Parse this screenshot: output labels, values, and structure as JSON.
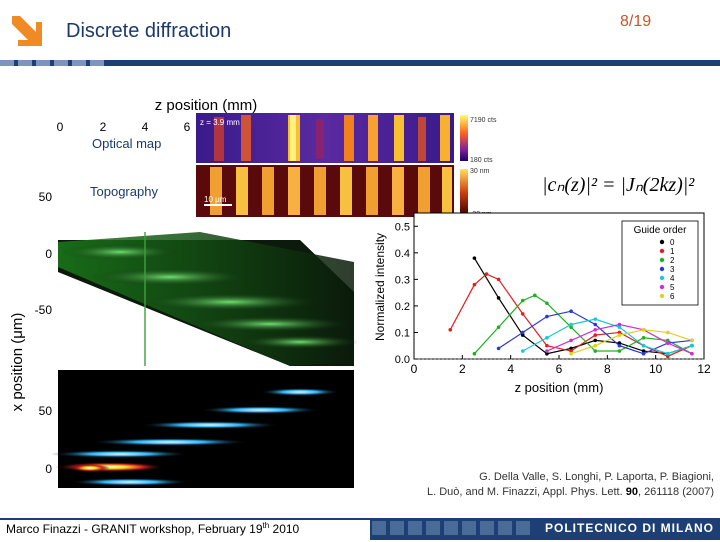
{
  "header": {
    "title": "Discrete diffraction",
    "page_number": "8/19"
  },
  "panels": {
    "optical_map_label": "Optical map",
    "topography_label": "Topography",
    "z_label": "z = 3.9 mm",
    "scale_bar": "10 μm",
    "colorbar_top": "7190 cts",
    "colorbar_mid": "180 cts",
    "colorbar2_top": "30 nm",
    "colorbar2_bottom": "-30 nm"
  },
  "left_plot": {
    "xlabel": "z position (mm)",
    "ylabel": "x position (μm)",
    "x_ticks": [
      "0",
      "2",
      "4",
      "6"
    ],
    "y_ticks_upper": [
      "50",
      "0",
      "-50"
    ],
    "y_ticks_lower": [
      "50",
      "0"
    ]
  },
  "formula": "|cₙ(z)|² = |Jₙ(2kz)|²",
  "chart_data": {
    "type": "line",
    "xlabel": "z position (mm)",
    "ylabel": "Normalized intensity",
    "xlim": [
      0,
      12
    ],
    "ylim": [
      0,
      0.55
    ],
    "x_ticks": [
      0,
      2,
      4,
      6,
      8,
      10,
      12
    ],
    "y_ticks": [
      0.0,
      0.1,
      0.2,
      0.3,
      0.4,
      0.5
    ],
    "legend_title": "Guide order",
    "legend_position": "top-right",
    "series": [
      {
        "name": "0",
        "color": "#000000",
        "x": [
          2.5,
          3.5,
          4.5,
          5.5,
          6.5,
          7.5,
          8.5,
          9.5,
          10.5,
          11.5
        ],
        "values": [
          0.38,
          0.23,
          0.09,
          0.02,
          0.04,
          0.07,
          0.06,
          0.03,
          0.02,
          0.05
        ]
      },
      {
        "name": "1",
        "color": "#e02020",
        "x": [
          1.5,
          2.5,
          3.0,
          3.5,
          4.5,
          5.5,
          6.5,
          7.5,
          8.5,
          9.5,
          10.5,
          11.5
        ],
        "values": [
          0.11,
          0.28,
          0.32,
          0.3,
          0.17,
          0.05,
          0.03,
          0.09,
          0.1,
          0.05,
          0.01,
          0.05
        ]
      },
      {
        "name": "2",
        "color": "#20b020",
        "x": [
          2.5,
          3.5,
          4.5,
          5.0,
          5.5,
          6.5,
          7.5,
          8.5,
          9.5,
          10.5,
          11.5
        ],
        "values": [
          0.02,
          0.12,
          0.22,
          0.24,
          0.21,
          0.12,
          0.03,
          0.03,
          0.08,
          0.07,
          0.02
        ]
      },
      {
        "name": "3",
        "color": "#2a3ad0",
        "x": [
          3.5,
          4.5,
          5.5,
          6.5,
          7.5,
          8.5,
          9.5,
          10.5,
          11.5
        ],
        "values": [
          0.04,
          0.1,
          0.16,
          0.18,
          0.13,
          0.05,
          0.02,
          0.06,
          0.07
        ]
      },
      {
        "name": "4",
        "color": "#18c8d8",
        "x": [
          4.5,
          5.5,
          6.5,
          7.5,
          8.5,
          9.5,
          10.5,
          11.5
        ],
        "values": [
          0.03,
          0.08,
          0.13,
          0.15,
          0.12,
          0.05,
          0.02,
          0.05
        ]
      },
      {
        "name": "5",
        "color": "#d030d0",
        "x": [
          5.5,
          6.5,
          7.5,
          8.5,
          9.5,
          10.5,
          11.5
        ],
        "values": [
          0.03,
          0.07,
          0.11,
          0.13,
          0.11,
          0.06,
          0.02
        ]
      },
      {
        "name": "6",
        "color": "#e0d020",
        "x": [
          6.5,
          7.5,
          8.5,
          9.5,
          10.5,
          11.5
        ],
        "values": [
          0.02,
          0.05,
          0.09,
          0.11,
          0.1,
          0.07
        ]
      }
    ]
  },
  "citation": {
    "line1": "G. Della Valle, S. Longhi, P. Laporta, P. Biagioni,",
    "line2_prefix": "L. Duò, and M. Finazzi, Appl. Phys. Lett.",
    "volume": "90",
    "line2_suffix": ", 261118 (2007)"
  },
  "footer": {
    "author_prefix": "Marco Finazzi - GRANIT workshop, February 19",
    "author_sup": "th",
    "author_suffix": " 2010",
    "brand": "POLITECNICO DI MILANO"
  },
  "colors": {
    "navy": "#1d3f73",
    "accent_orange": "#c8562a",
    "logo_orange": "#f08a24"
  },
  "icons": [
    "polimi-arrow-logo"
  ]
}
